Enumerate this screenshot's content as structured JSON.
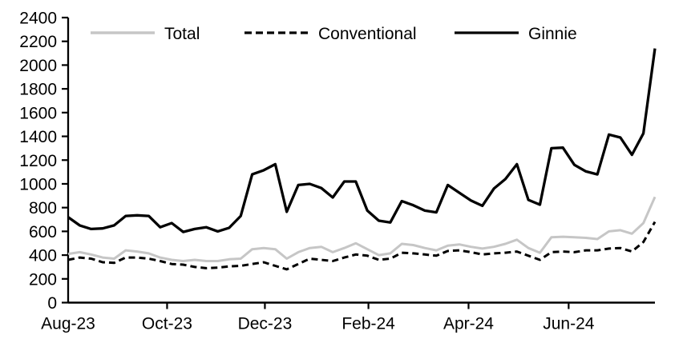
{
  "figure": {
    "background": "#ffffff",
    "axis_color": "#000000",
    "text_color": "#000000"
  },
  "chart_data": {
    "type": "line",
    "title": "",
    "xlabel": "",
    "ylabel": "",
    "ylim": [
      0,
      2400
    ],
    "y_tick_step": 200,
    "grid": false,
    "legend_position": "top",
    "x_unit": "weekly observations, Aug-2023 through early Aug-2024",
    "x_tick_labels": [
      "Aug-23",
      "Oct-23",
      "Dec-23",
      "Feb-24",
      "Apr-24",
      "Jun-24"
    ],
    "x_ticks": [
      {
        "label": "Aug-23",
        "week": 0
      },
      {
        "label": "Oct-23",
        "week": 8.6
      },
      {
        "label": "Dec-23",
        "week": 17.1
      },
      {
        "label": "Feb-24",
        "week": 26.1
      },
      {
        "label": "Apr-24",
        "week": 34.8
      },
      {
        "label": "Jun-24",
        "week": 43.5
      }
    ],
    "series": [
      {
        "name": "Total",
        "color": "#c6c6c6",
        "style": "solid",
        "values": [
          410,
          425,
          405,
          380,
          370,
          440,
          430,
          415,
          380,
          360,
          350,
          360,
          350,
          350,
          365,
          370,
          450,
          460,
          450,
          370,
          425,
          460,
          470,
          425,
          460,
          500,
          450,
          400,
          415,
          495,
          485,
          460,
          440,
          480,
          490,
          470,
          455,
          470,
          495,
          530,
          460,
          420,
          550,
          555,
          550,
          545,
          535,
          600,
          610,
          580,
          670,
          890
        ]
      },
      {
        "name": "Conventional",
        "color": "#000000",
        "style": "dashed",
        "values": [
          360,
          380,
          370,
          340,
          335,
          380,
          380,
          370,
          350,
          325,
          320,
          300,
          290,
          295,
          305,
          310,
          325,
          340,
          310,
          280,
          325,
          370,
          360,
          350,
          380,
          405,
          395,
          360,
          370,
          420,
          415,
          405,
          395,
          435,
          440,
          425,
          405,
          415,
          420,
          430,
          395,
          360,
          425,
          430,
          425,
          440,
          440,
          455,
          460,
          430,
          510,
          680
        ]
      },
      {
        "name": "Ginnie",
        "color": "#000000",
        "style": "solid",
        "values": [
          720,
          650,
          620,
          625,
          650,
          730,
          735,
          730,
          635,
          670,
          595,
          620,
          635,
          600,
          630,
          730,
          1080,
          1115,
          1165,
          765,
          990,
          1000,
          965,
          885,
          1020,
          1020,
          775,
          690,
          675,
          855,
          820,
          775,
          760,
          990,
          925,
          860,
          815,
          960,
          1040,
          1165,
          865,
          825,
          1300,
          1305,
          1160,
          1105,
          1080,
          1415,
          1390,
          1245,
          1425,
          2140
        ]
      }
    ]
  }
}
